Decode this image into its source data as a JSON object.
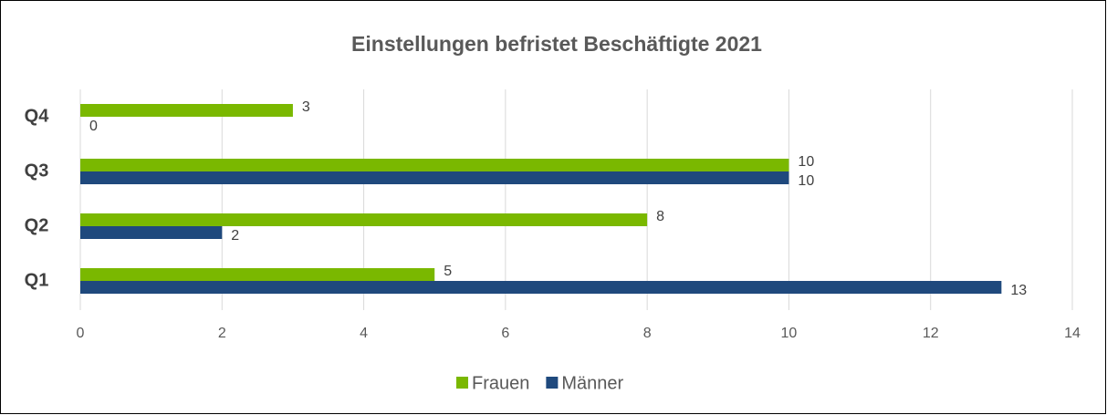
{
  "chart_data": {
    "type": "bar",
    "orientation": "horizontal",
    "title": "Einstellungen befristet Beschäftigte 2021",
    "categories": [
      "Q1",
      "Q2",
      "Q3",
      "Q4"
    ],
    "series": [
      {
        "name": "Frauen",
        "color": "#7ab800",
        "values": [
          5,
          8,
          10,
          3
        ]
      },
      {
        "name": "Männer",
        "color": "#1f497d",
        "values": [
          13,
          2,
          10,
          0
        ]
      }
    ],
    "xlim": [
      0,
      14
    ],
    "xticks": [
      0,
      2,
      4,
      6,
      8,
      10,
      12,
      14
    ],
    "grid": true,
    "legend": "bottom"
  }
}
